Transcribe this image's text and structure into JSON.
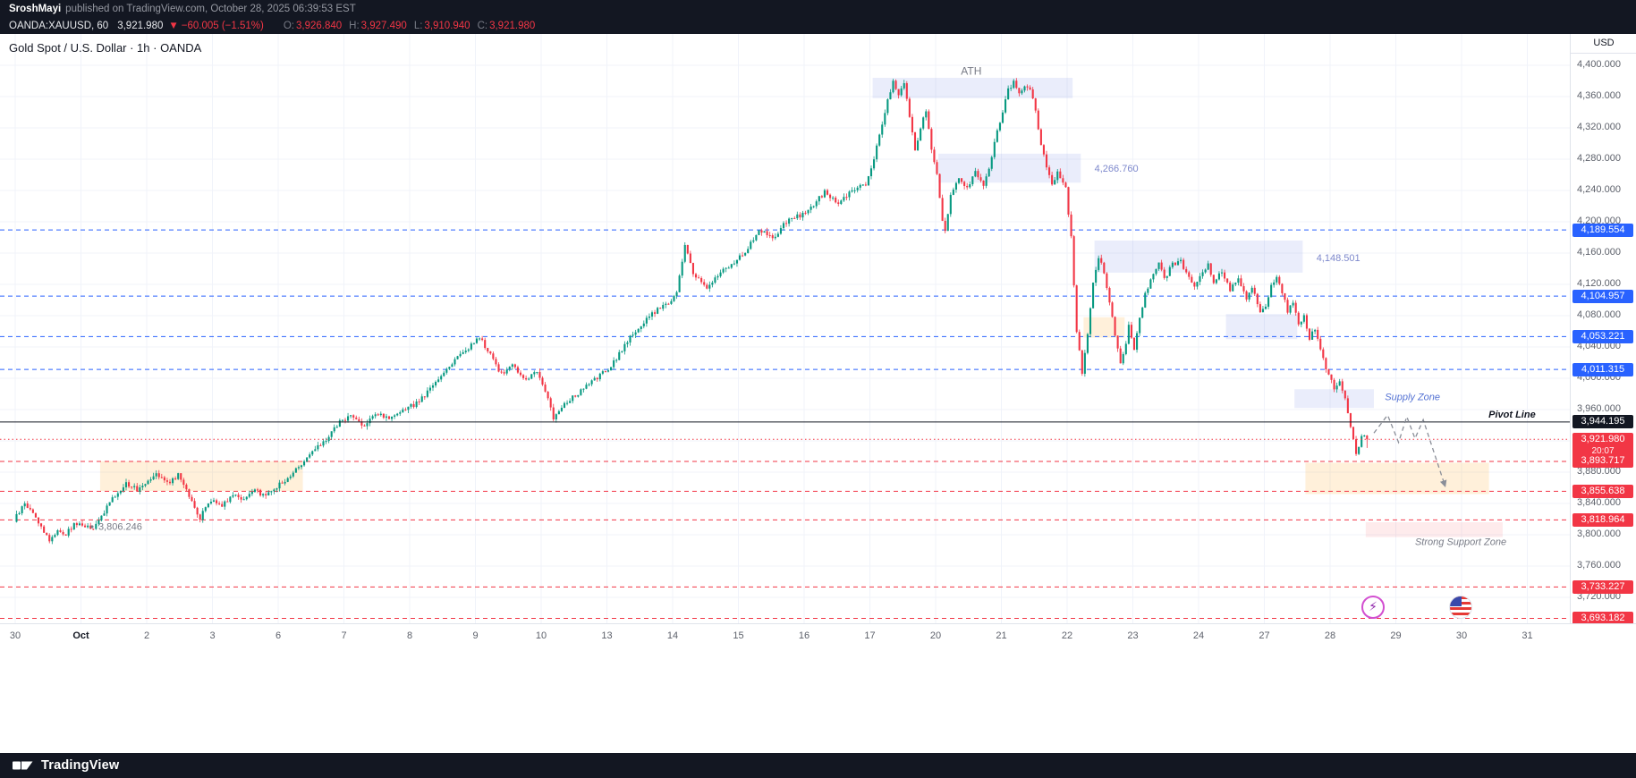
{
  "header": {
    "line1": {
      "author": "SroshMayi",
      "text": "published on TradingView.com, October 28, 2025 06:39:53 EST"
    },
    "line2": {
      "symbol": "OANDA:XAUUSD, 60",
      "price": "3,921.980",
      "arrow": "▼",
      "change": "−60.005 (−1.51%)",
      "o_label": "O:",
      "o_value": "3,926.840",
      "h_label": "H:",
      "h_value": "3,927.490",
      "l_label": "L:",
      "l_value": "3,910.940",
      "c_label": "C:",
      "c_value": "3,921.980"
    }
  },
  "chart": {
    "title": "Gold Spot / U.S. Dollar · 1h · OANDA",
    "axis_currency": "USD",
    "icons": {
      "bolt": "⚡"
    }
  },
  "footer": {
    "brand": "TradingView"
  },
  "chart_data": {
    "type": "candlestick",
    "symbol": "OANDA:XAUUSD",
    "timeframe": "1h",
    "title": "Gold Spot / U.S. Dollar · 1h · OANDA",
    "candle_colors": {
      "up": "#089981",
      "down": "#F23645"
    },
    "colors": {
      "lavender": "rgba(106,126,224,0.14)",
      "cream": "rgba(255,167,38,0.17)",
      "pink": "rgba(242,54,69,0.10)"
    },
    "noise": {
      "body": 3,
      "wick": 4.5
    },
    "y_axis": {
      "ticks": [
        {
          "label": "4,400.000",
          "price": 4400
        },
        {
          "label": "4,360.000",
          "price": 4360
        },
        {
          "label": "4,320.000",
          "price": 4320
        },
        {
          "label": "4,280.000",
          "price": 4280
        },
        {
          "label": "4,240.000",
          "price": 4240
        },
        {
          "label": "4,200.000",
          "price": 4200
        },
        {
          "label": "4,160.000",
          "price": 4160
        },
        {
          "label": "4,120.000",
          "price": 4120
        },
        {
          "label": "4,080.000",
          "price": 4080
        },
        {
          "label": "4,040.000",
          "price": 4040
        },
        {
          "label": "4,000.000",
          "price": 4000
        },
        {
          "label": "3,960.000",
          "price": 3960
        },
        {
          "label": "3,920.000",
          "price": 3920
        },
        {
          "label": "3,880.000",
          "price": 3880
        },
        {
          "label": "3,840.000",
          "price": 3840
        },
        {
          "label": "3,800.000",
          "price": 3800
        },
        {
          "label": "3,760.000",
          "price": 3760
        },
        {
          "label": "3,720.000",
          "price": 3720
        }
      ]
    },
    "x_axis": {
      "labels": [
        "30",
        "Oct",
        "2",
        "3",
        "6",
        "7",
        "8",
        "9",
        "10",
        "13",
        "14",
        "15",
        "16",
        "17",
        "20",
        "21",
        "22",
        "23",
        "24",
        "27",
        "28",
        "29",
        "30",
        "31"
      ],
      "month_index": 1
    },
    "levels": [
      {
        "price": 4189.554,
        "label": "4,189.554",
        "color": "#2962FF",
        "style": "dashed",
        "above": false,
        "name": "resistance-4189"
      },
      {
        "price": 4104.957,
        "label": "4,104.957",
        "color": "#2962FF",
        "style": "dashed",
        "above": false,
        "name": "resistance-4104"
      },
      {
        "price": 4053.221,
        "label": "4,053.221",
        "color": "#2962FF",
        "style": "dashed",
        "above": false,
        "name": "resistance-4053"
      },
      {
        "price": 4011.315,
        "label": "4,011.315",
        "color": "#2962FF",
        "style": "dashed",
        "above": false,
        "name": "resistance-4011"
      },
      {
        "price": 3944.195,
        "label": "3,944.195",
        "color": "#131722",
        "style": "solid",
        "above": true,
        "name": "pivot-line"
      },
      {
        "price": 3921.98,
        "label": "3,921.980",
        "color": "#F23645",
        "style": "dotted",
        "above": true,
        "countdown": "20:07",
        "name": "current-price"
      },
      {
        "price": 3893.717,
        "label": "3,893.717",
        "color": "#F23645",
        "style": "dashed",
        "above": false,
        "name": "support-3893"
      },
      {
        "price": 3855.638,
        "label": "3,855.638",
        "color": "#F23645",
        "style": "dashed",
        "above": false,
        "name": "support-3855"
      },
      {
        "price": 3818.964,
        "label": "3,818.964",
        "color": "#F23645",
        "style": "dashed",
        "above": false,
        "name": "support-3818"
      },
      {
        "price": 3733.227,
        "label": "3,733.227",
        "color": "#F23645",
        "style": "dashed",
        "above": false,
        "name": "support-3733"
      },
      {
        "price": 3693.182,
        "label": "3,693.182",
        "color": "#F23645",
        "style": "dashed",
        "above": false,
        "name": "support-3693"
      }
    ],
    "zones": [
      {
        "name": "ath-supply-zone",
        "i0": 313,
        "i1": 386,
        "p0": 4358,
        "p1": 4384,
        "fill": "lavender"
      },
      {
        "name": "resistance-zone-4266",
        "i0": 337,
        "i1": 389,
        "p0": 4250,
        "p1": 4287,
        "fill": "lavender"
      },
      {
        "name": "resistance-zone-4148",
        "i0": 394,
        "i1": 470,
        "p0": 4135,
        "p1": 4176,
        "fill": "lavender"
      },
      {
        "name": "demand-zone-4060-left",
        "i0": 390,
        "i1": 405,
        "p0": 4052,
        "p1": 4078,
        "fill": "cream"
      },
      {
        "name": "demand-zone-4060-right",
        "i0": 442,
        "i1": 468,
        "p0": 4050,
        "p1": 4082,
        "fill": "lavender"
      },
      {
        "name": "supply-zone",
        "i0": 467,
        "i1": 496,
        "p0": 3962,
        "p1": 3986,
        "fill": "lavender"
      },
      {
        "name": "support-zone-early",
        "i0": 31,
        "i1": 105,
        "p0": 3856,
        "p1": 3894,
        "fill": "cream"
      },
      {
        "name": "support-zone-target",
        "i0": 471,
        "i1": 538,
        "p0": 3852,
        "p1": 3892,
        "fill": "cream"
      },
      {
        "name": "strong-support-zone",
        "i0": 493,
        "i1": 543,
        "p0": 3797,
        "p1": 3816,
        "fill": "pink"
      }
    ],
    "annotations": [
      {
        "text": "ATH",
        "idx": 349,
        "price": 4388,
        "color": "#787b86",
        "size": 12,
        "anchor": "middle"
      },
      {
        "text": "4,266.760",
        "idx": 394,
        "price": 4264,
        "color": "#7d88cc",
        "size": 11,
        "anchor": "start"
      },
      {
        "text": "4,148.501",
        "idx": 475,
        "price": 4150,
        "color": "#7d88cc",
        "size": 11,
        "anchor": "start"
      },
      {
        "text": "Supply Zone",
        "idx": 500,
        "price": 3972,
        "color": "#5472d3",
        "size": 11,
        "anchor": "start",
        "style": "italic"
      },
      {
        "text": "Strong Support Zone",
        "idx": 511,
        "price": 3787,
        "color": "#787b86",
        "size": 11,
        "anchor": "start",
        "style": "italic"
      },
      {
        "text": "Pivot Line",
        "idx": 555,
        "price": 3950,
        "color": "#131722",
        "size": 11,
        "anchor": "end",
        "style": "italic",
        "weight": "600"
      }
    ],
    "marker_low": {
      "label": "3,806.246",
      "idx": 31,
      "price": 3806.246,
      "color": "#787b86"
    },
    "projection": {
      "color": "#8a8e98",
      "points": [
        [
          496,
          3930
        ],
        [
          501,
          3953
        ],
        [
          505,
          3918
        ],
        [
          508,
          3951
        ],
        [
          511,
          3923
        ],
        [
          514,
          3947
        ],
        [
          522,
          3862
        ]
      ]
    },
    "last_candle": {
      "open": 3926.84,
      "high": 3927.49,
      "low": 3910.94,
      "close": 3921.98
    },
    "price_anchors": [
      [
        0,
        3818
      ],
      [
        4,
        3840
      ],
      [
        7,
        3828
      ],
      [
        10,
        3810
      ],
      [
        13,
        3793
      ],
      [
        16,
        3806
      ],
      [
        19,
        3800
      ],
      [
        22,
        3814
      ],
      [
        26,
        3812
      ],
      [
        29,
        3806
      ],
      [
        33,
        3830
      ],
      [
        37,
        3850
      ],
      [
        41,
        3866
      ],
      [
        45,
        3858
      ],
      [
        47,
        3864
      ],
      [
        52,
        3880
      ],
      [
        56,
        3866
      ],
      [
        60,
        3876
      ],
      [
        63,
        3860
      ],
      [
        66,
        3832
      ],
      [
        68,
        3820
      ],
      [
        70,
        3836
      ],
      [
        72,
        3845
      ],
      [
        76,
        3838
      ],
      [
        80,
        3852
      ],
      [
        84,
        3846
      ],
      [
        88,
        3856
      ],
      [
        92,
        3850
      ],
      [
        95,
        3860
      ],
      [
        99,
        3868
      ],
      [
        104,
        3888
      ],
      [
        109,
        3905
      ],
      [
        114,
        3922
      ],
      [
        119,
        3944
      ],
      [
        123,
        3952
      ],
      [
        128,
        3940
      ],
      [
        133,
        3955
      ],
      [
        138,
        3948
      ],
      [
        143,
        3960
      ],
      [
        147,
        3968
      ],
      [
        152,
        3986
      ],
      [
        157,
        4008
      ],
      [
        162,
        4028
      ],
      [
        167,
        4042
      ],
      [
        170,
        4052
      ],
      [
        174,
        4030
      ],
      [
        178,
        4005
      ],
      [
        182,
        4018
      ],
      [
        186,
        3998
      ],
      [
        191,
        4008
      ],
      [
        194,
        3985
      ],
      [
        197,
        3950
      ],
      [
        201,
        3968
      ],
      [
        206,
        3980
      ],
      [
        211,
        3995
      ],
      [
        215,
        4006
      ],
      [
        219,
        4020
      ],
      [
        224,
        4048
      ],
      [
        229,
        4068
      ],
      [
        234,
        4085
      ],
      [
        239,
        4098
      ],
      [
        242,
        4108
      ],
      [
        245,
        4170
      ],
      [
        248,
        4135
      ],
      [
        253,
        4115
      ],
      [
        258,
        4135
      ],
      [
        263,
        4148
      ],
      [
        267,
        4162
      ],
      [
        272,
        4190
      ],
      [
        277,
        4178
      ],
      [
        282,
        4200
      ],
      [
        287,
        4208
      ],
      [
        291,
        4218
      ],
      [
        296,
        4238
      ],
      [
        301,
        4222
      ],
      [
        306,
        4240
      ],
      [
        311,
        4248
      ],
      [
        313,
        4268
      ],
      [
        316,
        4310
      ],
      [
        319,
        4355
      ],
      [
        321,
        4378
      ],
      [
        323,
        4360
      ],
      [
        325,
        4378
      ],
      [
        327,
        4335
      ],
      [
        329,
        4292
      ],
      [
        331,
        4320
      ],
      [
        333,
        4342
      ],
      [
        335,
        4295
      ],
      [
        337,
        4262
      ],
      [
        339,
        4200
      ],
      [
        340,
        4190
      ],
      [
        342,
        4235
      ],
      [
        345,
        4255
      ],
      [
        348,
        4242
      ],
      [
        351,
        4262
      ],
      [
        354,
        4248
      ],
      [
        356,
        4270
      ],
      [
        358,
        4300
      ],
      [
        359,
        4318
      ],
      [
        361,
        4340
      ],
      [
        363,
        4368
      ],
      [
        365,
        4378
      ],
      [
        367,
        4362
      ],
      [
        369,
        4374
      ],
      [
        371,
        4368
      ],
      [
        373,
        4342
      ],
      [
        375,
        4300
      ],
      [
        377,
        4268
      ],
      [
        379,
        4248
      ],
      [
        381,
        4262
      ],
      [
        383,
        4252
      ],
      [
        384,
        4242
      ],
      [
        386,
        4180
      ],
      [
        387,
        4120
      ],
      [
        388,
        4060
      ],
      [
        390,
        4006
      ],
      [
        392,
        4056
      ],
      [
        394,
        4120
      ],
      [
        396,
        4155
      ],
      [
        398,
        4135
      ],
      [
        400,
        4098
      ],
      [
        402,
        4055
      ],
      [
        404,
        4020
      ],
      [
        406,
        4045
      ],
      [
        407,
        4068
      ],
      [
        409,
        4038
      ],
      [
        411,
        4075
      ],
      [
        413,
        4108
      ],
      [
        416,
        4135
      ],
      [
        418,
        4148
      ],
      [
        420,
        4128
      ],
      [
        423,
        4145
      ],
      [
        426,
        4150
      ],
      [
        428,
        4135
      ],
      [
        431,
        4120
      ],
      [
        433,
        4128
      ],
      [
        436,
        4145
      ],
      [
        438,
        4120
      ],
      [
        441,
        4138
      ],
      [
        444,
        4112
      ],
      [
        447,
        4130
      ],
      [
        450,
        4100
      ],
      [
        452,
        4118
      ],
      [
        455,
        4082
      ],
      [
        457,
        4092
      ],
      [
        459,
        4118
      ],
      [
        461,
        4132
      ],
      [
        463,
        4110
      ],
      [
        465,
        4085
      ],
      [
        467,
        4098
      ],
      [
        469,
        4068
      ],
      [
        471,
        4080
      ],
      [
        473,
        4052
      ],
      [
        475,
        4062
      ],
      [
        477,
        4035
      ],
      [
        479,
        4012
      ],
      [
        480,
        4005
      ],
      [
        482,
        3988
      ],
      [
        484,
        3998
      ],
      [
        486,
        3972
      ],
      [
        487,
        3958
      ],
      [
        488,
        3940
      ],
      [
        489,
        3920
      ],
      [
        490,
        3904
      ],
      [
        491,
        3915
      ],
      [
        492,
        3925
      ],
      [
        493,
        3921.98
      ]
    ]
  }
}
